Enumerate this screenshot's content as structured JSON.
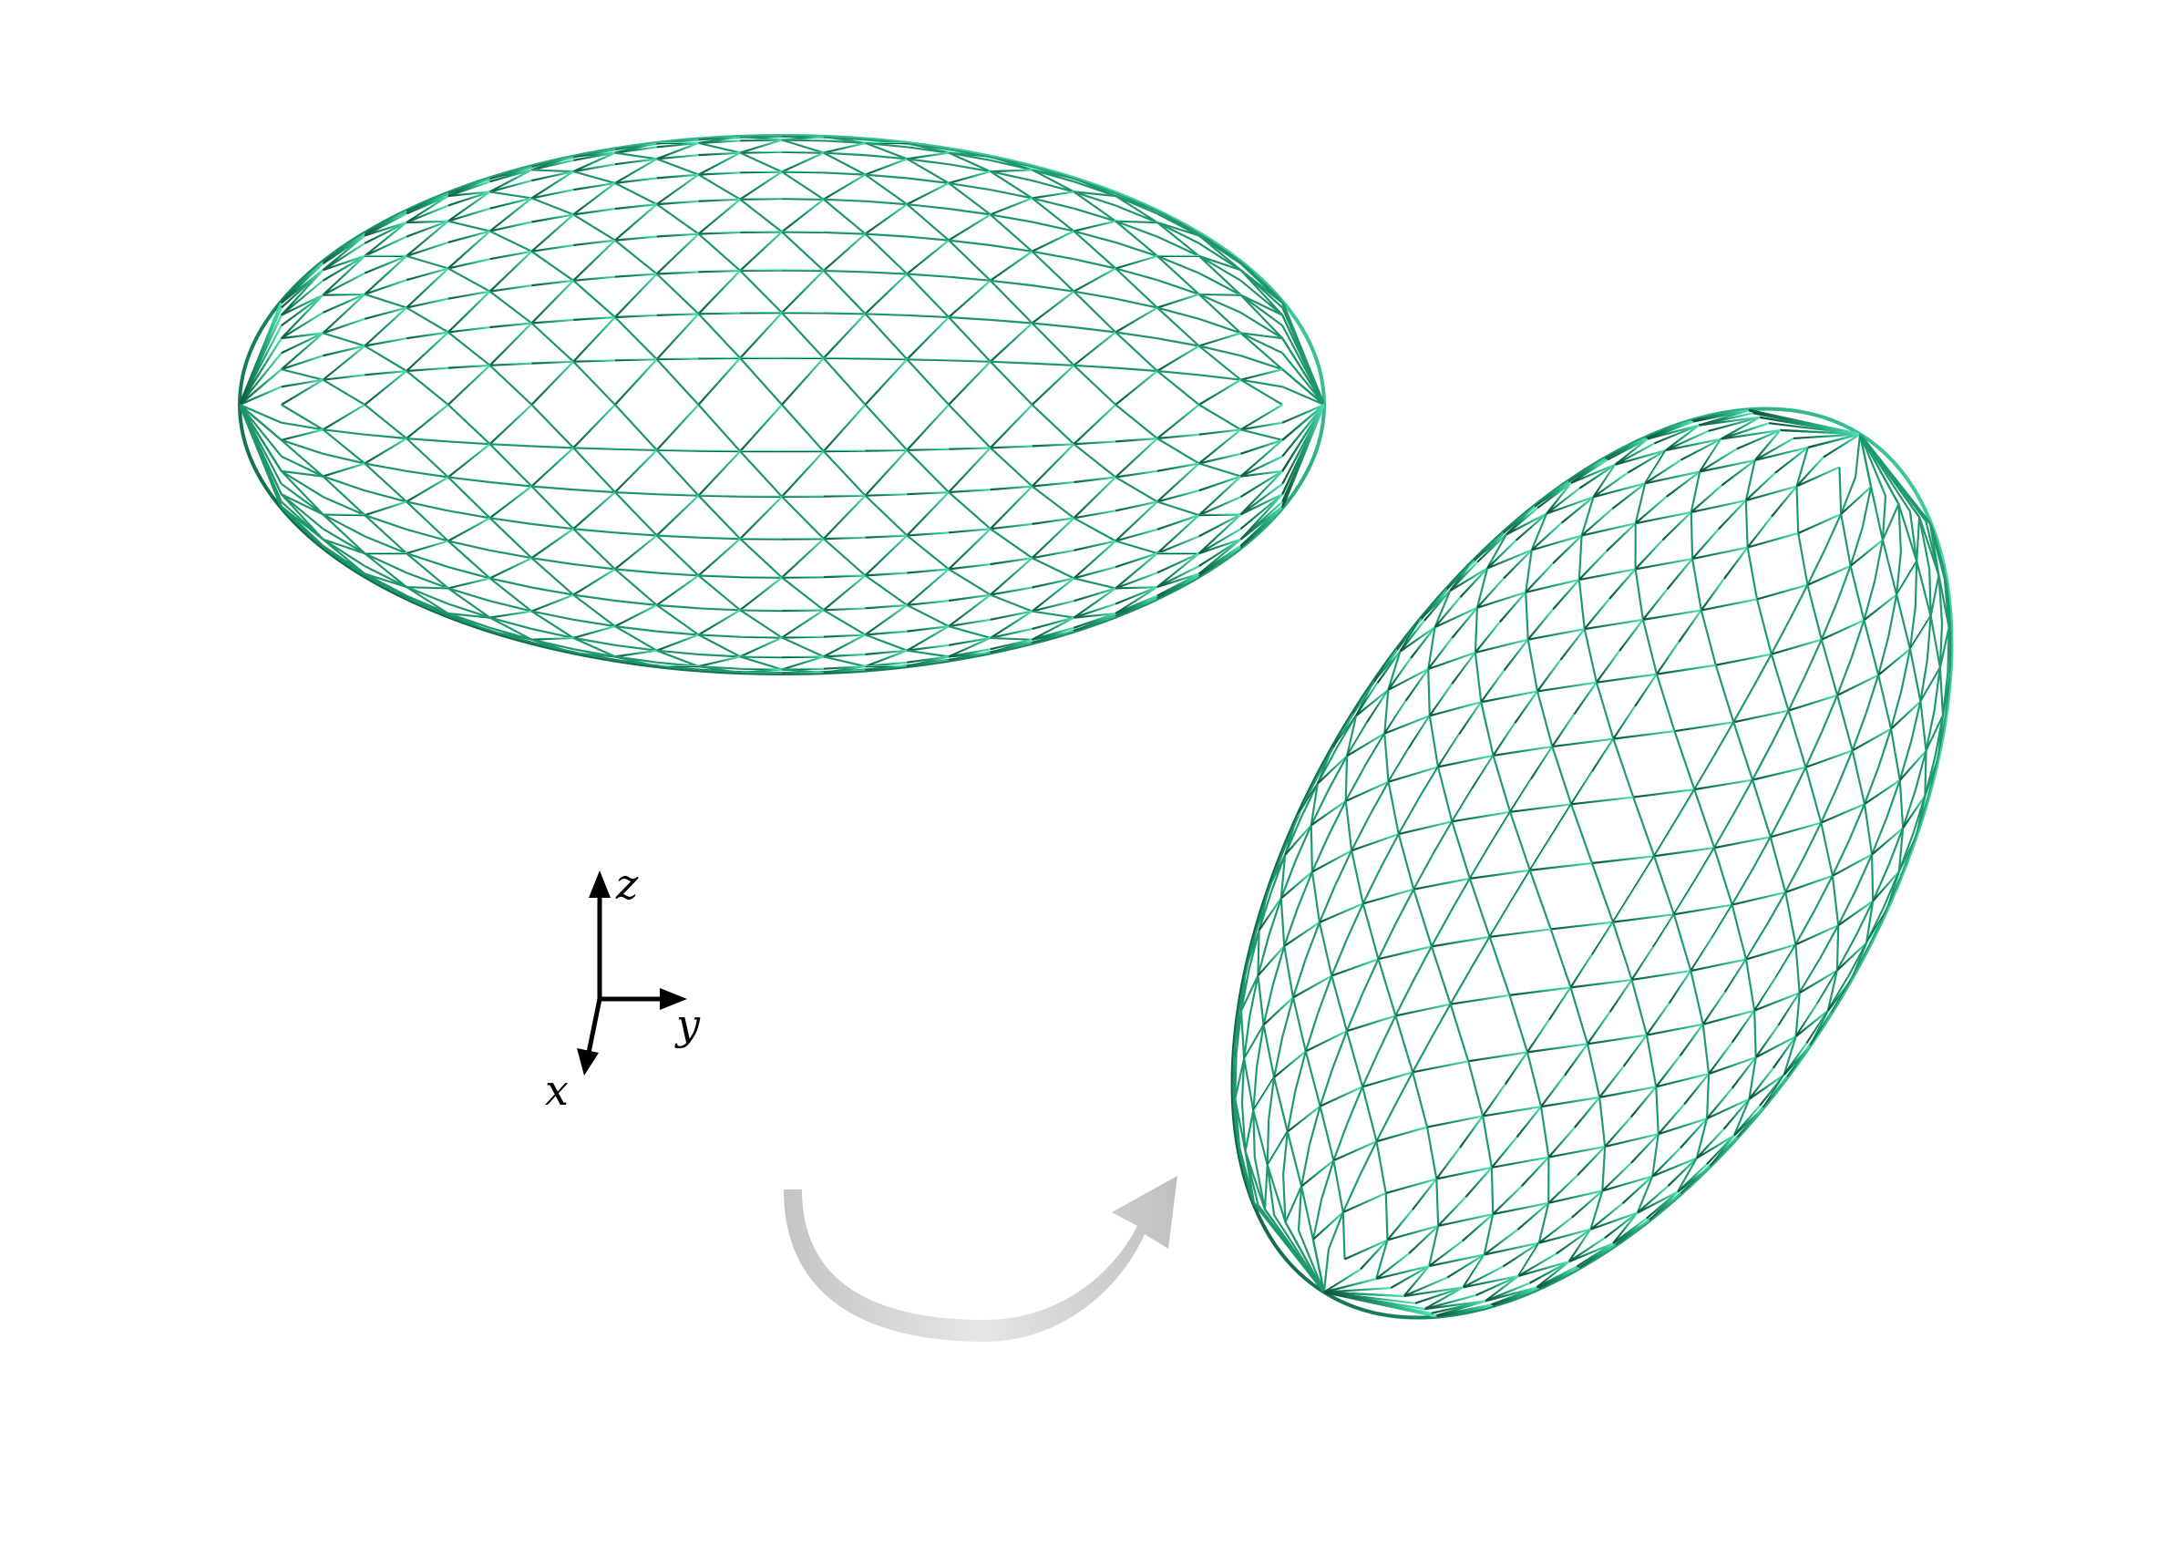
{
  "colors": {
    "mesh_light": "#3fdcb0",
    "mesh_dark": "#0b5a3a",
    "arrow_gray": "#c8c8c8",
    "axes": "#000000"
  },
  "axes": {
    "z_label": "z",
    "y_label": "y",
    "x_label": "x"
  },
  "shapes": {
    "top_ellipsoid": {
      "name": "wireframe-ellipsoid-horizontal"
    },
    "rotated_ellipsoid": {
      "name": "wireframe-ellipsoid-rotated"
    },
    "rotation_arrow": {
      "name": "curved-rotation-arrow"
    }
  }
}
